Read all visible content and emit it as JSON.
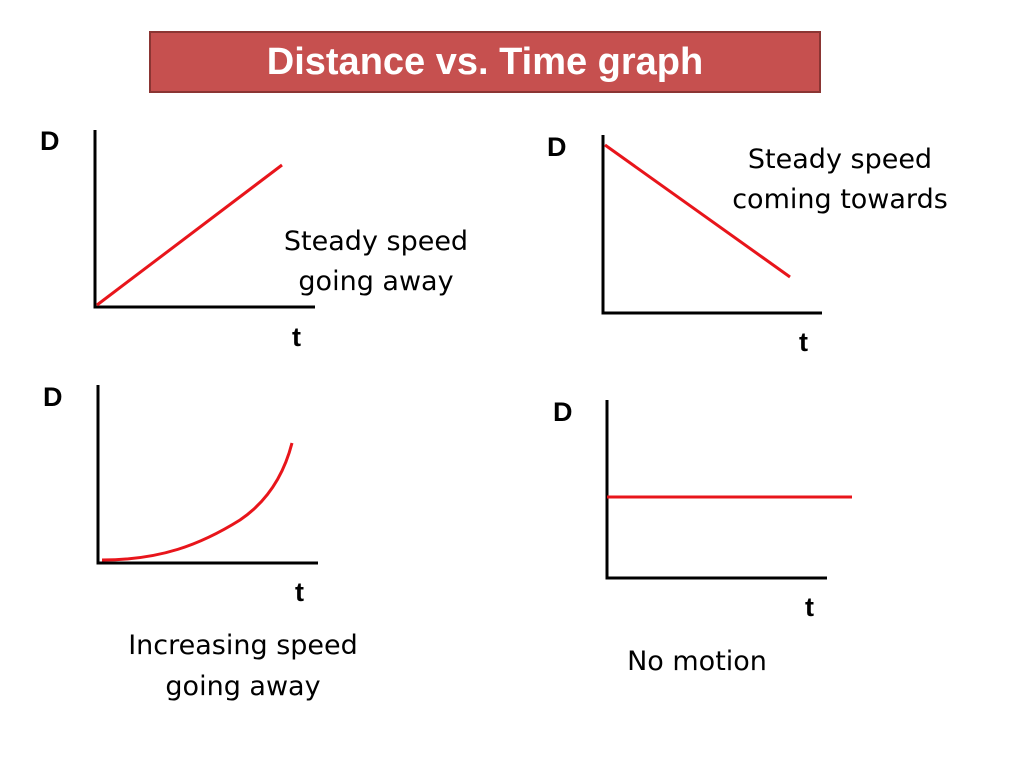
{
  "title": "Distance vs. Time graph",
  "panels": [
    {
      "y_label": "D",
      "x_label": "t",
      "caption": [
        "Steady speed",
        "going away"
      ]
    },
    {
      "y_label": "D",
      "x_label": "t",
      "caption": [
        "Steady speed",
        "coming towards"
      ]
    },
    {
      "y_label": "D",
      "x_label": "t",
      "caption": [
        "Increasing speed",
        "going away"
      ]
    },
    {
      "y_label": "D",
      "x_label": "t",
      "caption": [
        "No motion"
      ]
    }
  ]
}
